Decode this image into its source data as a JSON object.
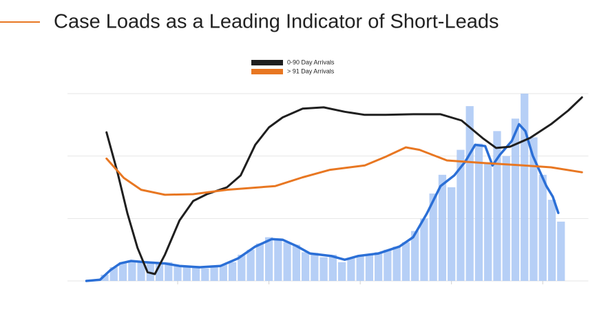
{
  "chart_data": {
    "type": "line",
    "title": "Case Loads as a Leading Indicator of Short-Leads",
    "title_color": "#e87722",
    "legend": "top",
    "grid": true,
    "xlim": [
      0,
      5.5
    ],
    "xticks": [
      1,
      2,
      3,
      4,
      5
    ],
    "ylim": [
      0,
      3
    ],
    "yticks": [
      0,
      1,
      2,
      3
    ],
    "series": [
      {
        "name": "0-90 Day Arrivals",
        "color": "#1f1f1f",
        "x": [
          0.22,
          0.34,
          0.45,
          0.56,
          0.67,
          0.75,
          0.86,
          1.02,
          1.17,
          1.32,
          1.54,
          1.69,
          1.85,
          2.0,
          2.15,
          2.37,
          2.6,
          2.83,
          3.05,
          3.28,
          3.58,
          3.88,
          4.11,
          4.34,
          4.49,
          4.64,
          4.86,
          5.09,
          5.28,
          5.43
        ],
        "values": [
          2.38,
          1.74,
          1.08,
          0.53,
          0.14,
          0.11,
          0.42,
          0.97,
          1.28,
          1.39,
          1.5,
          1.69,
          2.18,
          2.46,
          2.62,
          2.76,
          2.78,
          2.71,
          2.66,
          2.66,
          2.67,
          2.67,
          2.57,
          2.29,
          2.13,
          2.15,
          2.29,
          2.51,
          2.73,
          2.94
        ]
      },
      {
        "name": "> 91 Day Arrivals",
        "color": "#e87722",
        "x": [
          0.22,
          0.41,
          0.6,
          0.86,
          1.17,
          1.54,
          2.07,
          2.37,
          2.67,
          3.05,
          3.28,
          3.5,
          3.65,
          3.95,
          4.34,
          4.79,
          5.09,
          5.43
        ],
        "values": [
          1.96,
          1.65,
          1.46,
          1.38,
          1.39,
          1.46,
          1.52,
          1.66,
          1.78,
          1.85,
          1.99,
          2.14,
          2.1,
          1.93,
          1.89,
          1.85,
          1.82,
          1.74
        ]
      }
    ],
    "trend": {
      "color": "#2b6fd6",
      "x": [
        0,
        0.15,
        0.26,
        0.37,
        0.49,
        0.64,
        0.86,
        1.02,
        1.24,
        1.47,
        1.66,
        1.85,
        2.03,
        2.15,
        2.3,
        2.45,
        2.68,
        2.83,
        2.98,
        3.2,
        3.43,
        3.58,
        3.73,
        3.88,
        4.03,
        4.15,
        4.26,
        4.37,
        4.45,
        4.53,
        4.66,
        4.74,
        4.81,
        4.89,
        5.04,
        5.11,
        5.17
      ],
      "values": [
        0,
        0.02,
        0.17,
        0.28,
        0.32,
        0.3,
        0.28,
        0.24,
        0.22,
        0.24,
        0.36,
        0.55,
        0.67,
        0.66,
        0.56,
        0.44,
        0.4,
        0.34,
        0.4,
        0.44,
        0.55,
        0.7,
        1.08,
        1.52,
        1.69,
        1.91,
        2.18,
        2.16,
        1.85,
        2.02,
        2.24,
        2.51,
        2.4,
        2.01,
        1.52,
        1.35,
        1.09
      ]
    },
    "bars": {
      "color": "#a9c7f5",
      "x": [
        0,
        0.1,
        0.2,
        0.3,
        0.4,
        0.5,
        0.6,
        0.7,
        0.8,
        0.9,
        1.0,
        1.1,
        1.2,
        1.3,
        1.4,
        1.5,
        1.6,
        1.7,
        1.8,
        1.9,
        2.0,
        2.1,
        2.2,
        2.3,
        2.4,
        2.5,
        2.6,
        2.7,
        2.8,
        2.9,
        3.0,
        3.1,
        3.2,
        3.3,
        3.4,
        3.5,
        3.6,
        3.7,
        3.8,
        3.9,
        4.0,
        4.1,
        4.2,
        4.3,
        4.4,
        4.5,
        4.6,
        4.7,
        4.8,
        4.9,
        5.0,
        5.1,
        5.2
      ],
      "values": [
        0,
        0.01,
        0.1,
        0.22,
        0.3,
        0.33,
        0.3,
        0.31,
        0.27,
        0.3,
        0.25,
        0.23,
        0.24,
        0.2,
        0.25,
        0.26,
        0.3,
        0.42,
        0.5,
        0.6,
        0.7,
        0.68,
        0.62,
        0.58,
        0.46,
        0.45,
        0.38,
        0.42,
        0.3,
        0.37,
        0.4,
        0.42,
        0.46,
        0.5,
        0.55,
        0.62,
        0.8,
        1.0,
        1.4,
        1.7,
        1.5,
        2.1,
        2.8,
        2.2,
        1.9,
        2.4,
        2.0,
        2.6,
        3.0,
        2.3,
        1.7,
        1.3,
        0.95
      ]
    }
  }
}
